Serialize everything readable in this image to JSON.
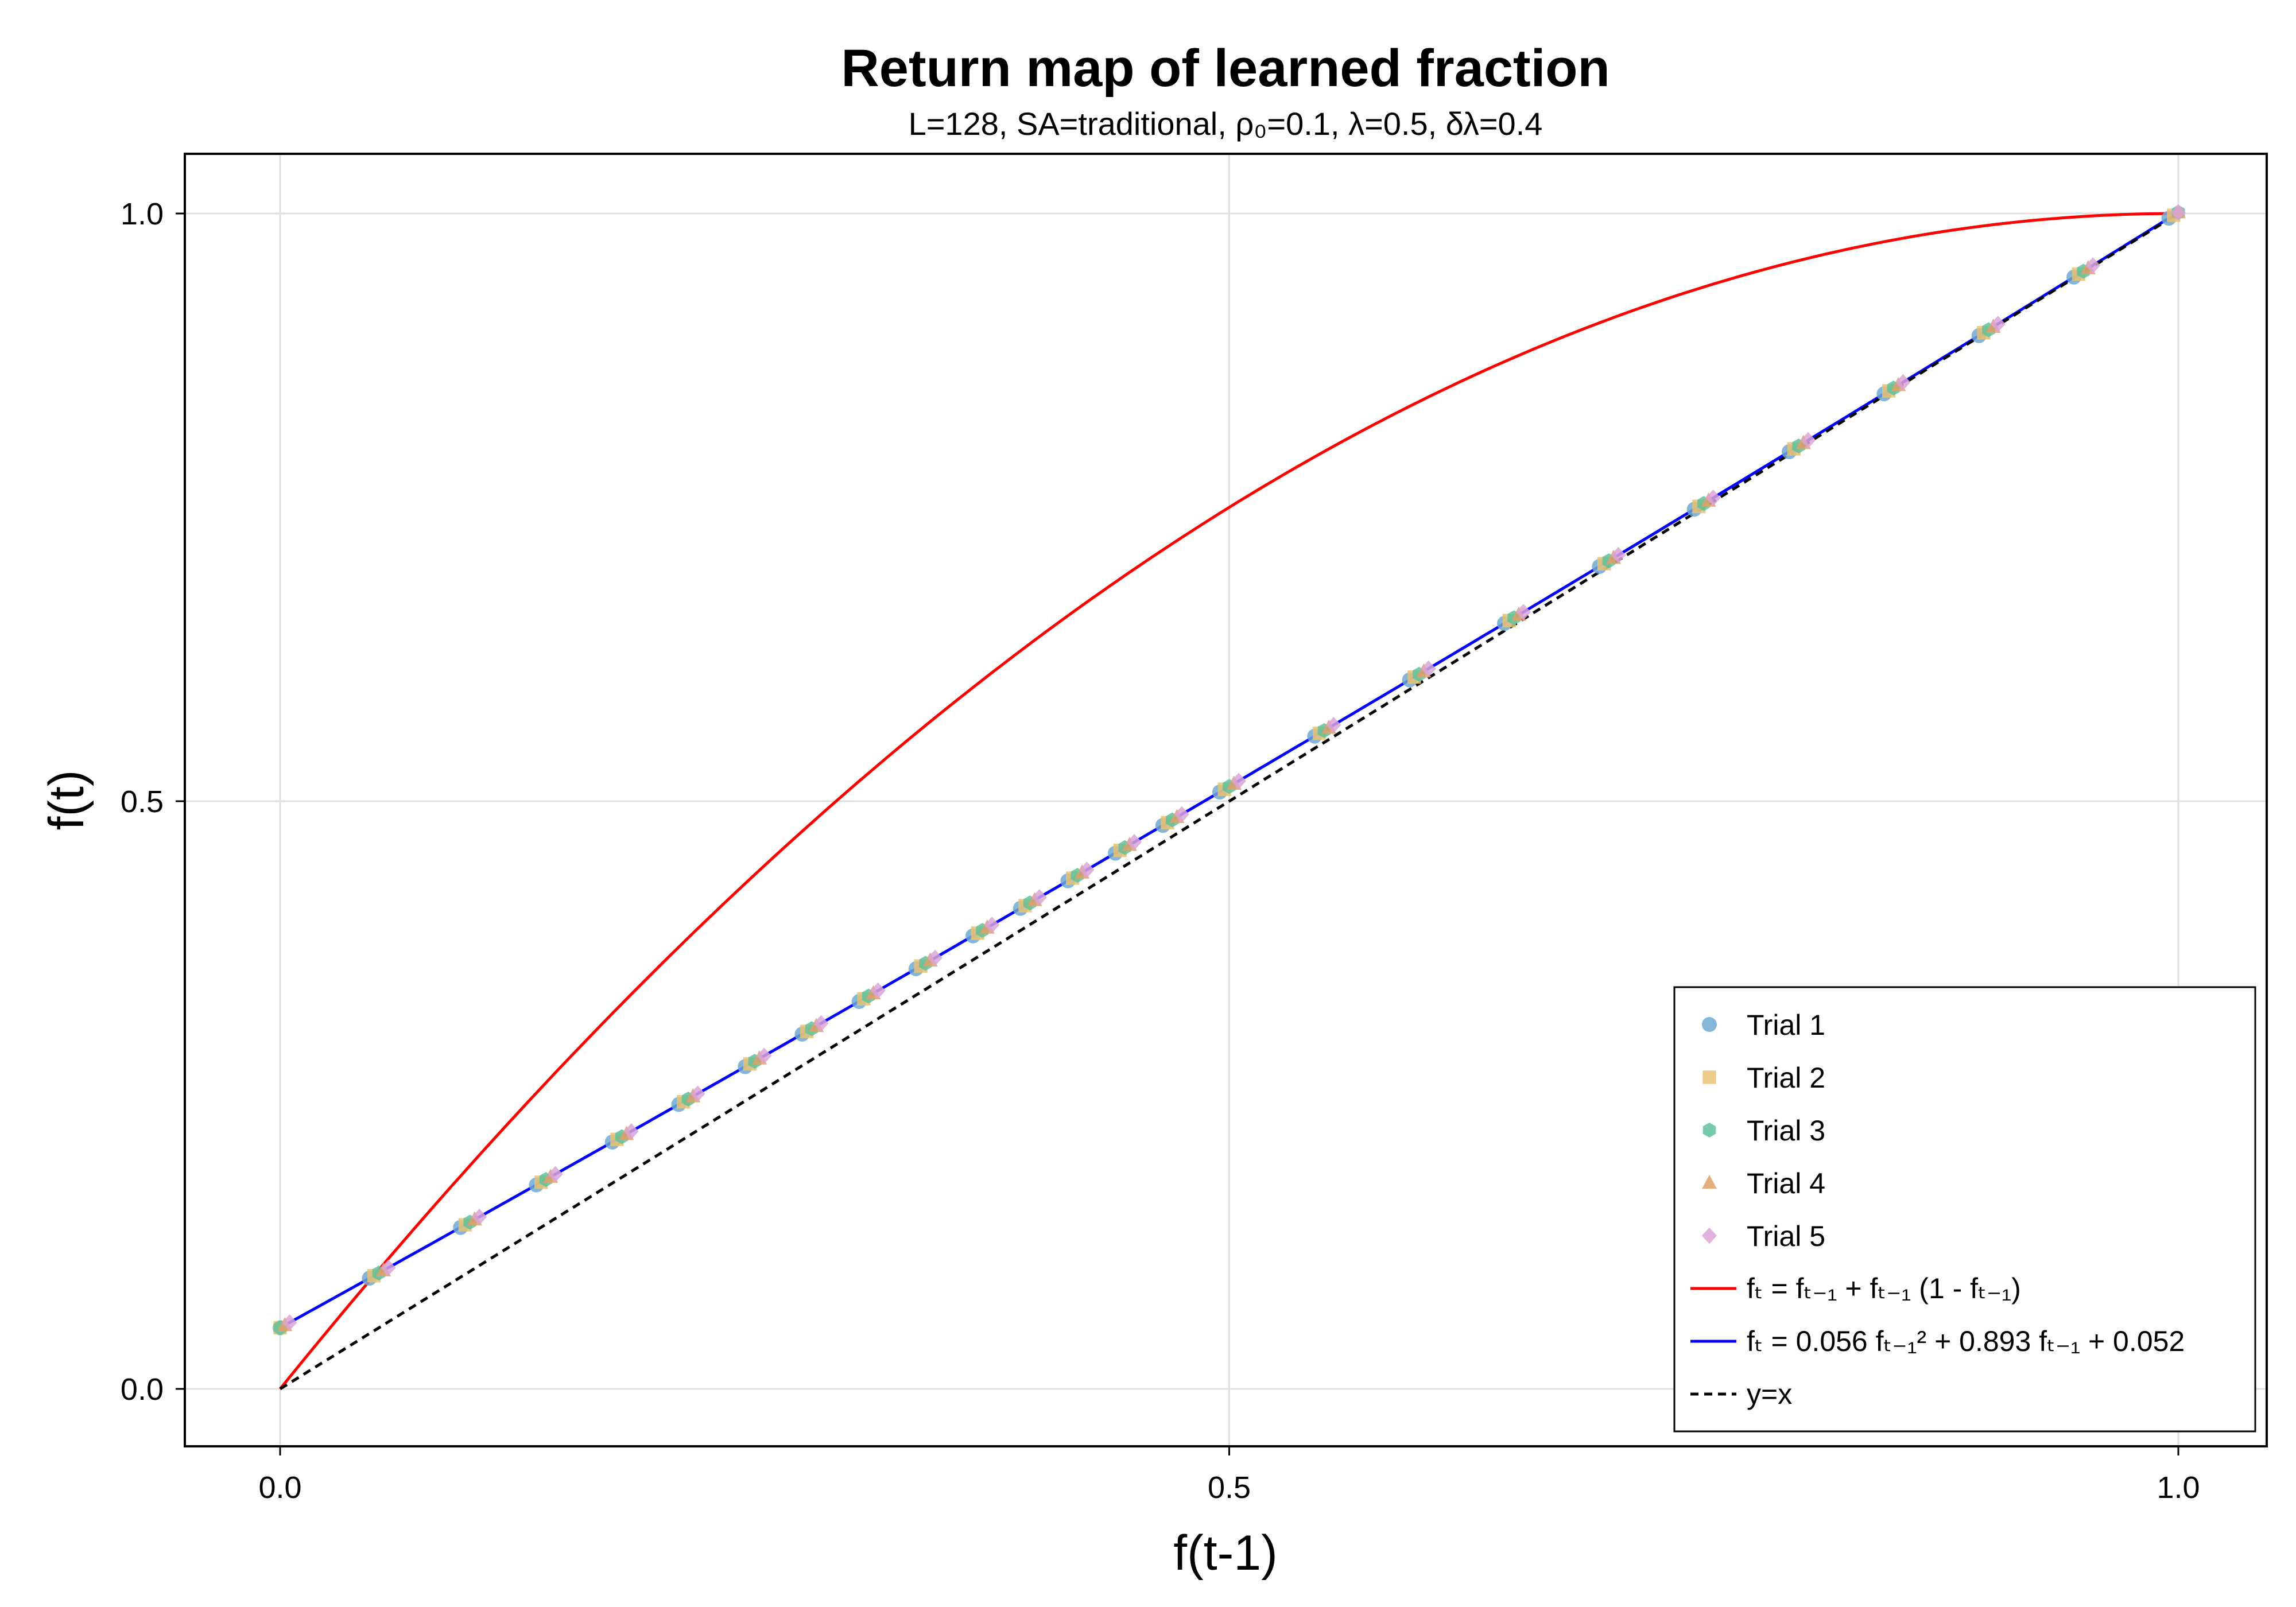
{
  "chart_data": {
    "type": "scatter",
    "title": "Return map of learned fraction",
    "subtitle": "L=128, SA=traditional, ρ₀=0.1, λ=0.5, δλ=0.4",
    "xlabel": "f(t-1)",
    "ylabel": "f(t)",
    "xlim": [
      -0.05,
      1.05
    ],
    "ylim": [
      -0.05,
      1.05
    ],
    "xticks": [
      "0.0",
      "0.5",
      "1.0"
    ],
    "yticks": [
      "0.0",
      "0.5",
      "1.0"
    ],
    "grid": true,
    "legend_position": "bottom-right",
    "trajectory_x": [
      0.0,
      0.052,
      0.1,
      0.14,
      0.18,
      0.215,
      0.25,
      0.28,
      0.31,
      0.34,
      0.37,
      0.395,
      0.42,
      0.445,
      0.47,
      0.5,
      0.55,
      0.6,
      0.65,
      0.7,
      0.75,
      0.8,
      0.85,
      0.9,
      0.95,
      1.0
    ],
    "series": [
      {
        "name": "Trial 1",
        "marker": "circle",
        "color": "#6fa9d4"
      },
      {
        "name": "Trial 2",
        "marker": "square",
        "color": "#e8c272"
      },
      {
        "name": "Trial 3",
        "marker": "hexagon",
        "color": "#5ec29c"
      },
      {
        "name": "Trial 4",
        "marker": "triangle",
        "color": "#e1a067"
      },
      {
        "name": "Trial 5",
        "marker": "diamond",
        "color": "#dba5d8"
      }
    ],
    "curves": [
      {
        "name": "fₜ = fₜ₋₁ + fₜ₋₁ (1 - fₜ₋₁)",
        "color": "#ff0000",
        "style": "solid",
        "function": "x + x(1-x)"
      },
      {
        "name": "fₜ = 0.056 fₜ₋₁² + 0.893 fₜ₋₁ + 0.052",
        "color": "#0000ff",
        "style": "solid",
        "function": "0.056x^2 + 0.893x + 0.052"
      },
      {
        "name": "y=x",
        "color": "#000000",
        "style": "dashed",
        "function": "x"
      }
    ]
  }
}
